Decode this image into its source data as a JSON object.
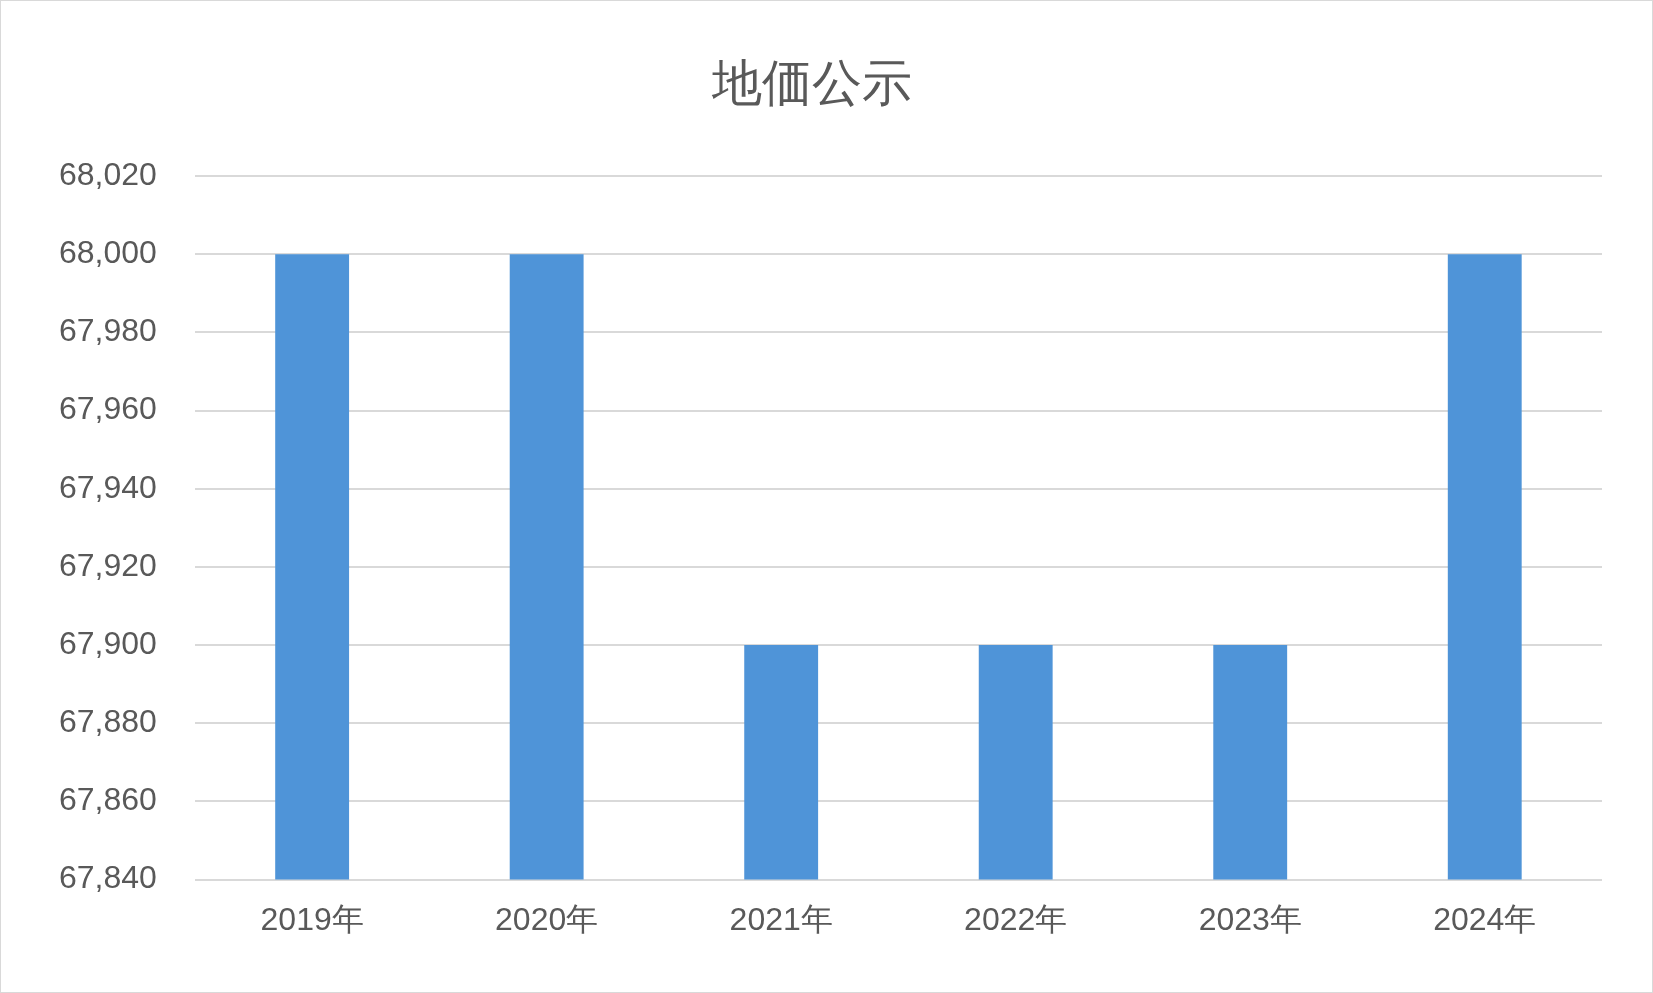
{
  "chart_data": {
    "type": "bar",
    "title": "地価公示",
    "categories": [
      "2019年",
      "2020年",
      "2021年",
      "2022年",
      "2023年",
      "2024年"
    ],
    "values": [
      68000,
      68000,
      67900,
      67900,
      67900,
      68000
    ],
    "color": "#4f94d8",
    "ylim": [
      67840,
      68020
    ],
    "yticks": [
      {
        "value": 67840,
        "label": "67,840"
      },
      {
        "value": 67860,
        "label": "67,860"
      },
      {
        "value": 67880,
        "label": "67,880"
      },
      {
        "value": 67900,
        "label": "67,900"
      },
      {
        "value": 67920,
        "label": "67,920"
      },
      {
        "value": 67940,
        "label": "67,940"
      },
      {
        "value": 67960,
        "label": "67,960"
      },
      {
        "value": 67980,
        "label": "67,980"
      },
      {
        "value": 68000,
        "label": "68,000"
      },
      {
        "value": 68020,
        "label": "68,020"
      }
    ],
    "grid": "y",
    "legend": false
  }
}
